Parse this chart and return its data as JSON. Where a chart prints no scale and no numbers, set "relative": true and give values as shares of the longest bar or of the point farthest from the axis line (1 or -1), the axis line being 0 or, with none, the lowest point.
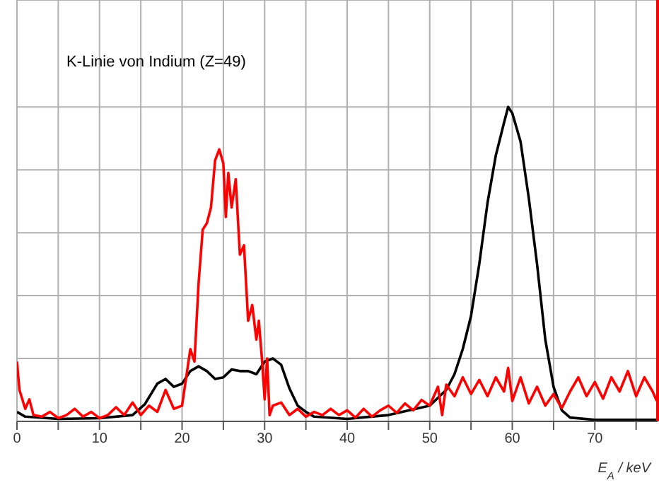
{
  "chart_data": {
    "type": "line",
    "relative": true,
    "xlabel": "E$_{A}$ / keV",
    "annotations": [
      "K-Linie von Indium (Z=49)"
    ],
    "xlim": [
      0,
      77.6
    ],
    "xticks": [
      0,
      {
        "value": 5,
        "label": null
      },
      10,
      {
        "value": 15,
        "label": null
      },
      20,
      {
        "value": 25,
        "label": null
      },
      30,
      {
        "value": 35,
        "label": null
      },
      40,
      {
        "value": 45,
        "label": null
      },
      50,
      {
        "value": 55,
        "label": null
      },
      60,
      {
        "value": 65,
        "label": null
      },
      70,
      {
        "value": 75,
        "label": null
      }
    ],
    "grid": true,
    "marker": "none",
    "line_style": "solid",
    "ref_lines": [
      {
        "axis": "x",
        "value": 77.6,
        "label": null,
        "color": "#ff0000"
      }
    ],
    "series": [
      {
        "color": "#000000",
        "x": [
          0,
          1,
          5,
          10,
          14,
          15.5,
          17,
          18,
          19,
          20,
          21,
          22,
          23,
          24,
          25,
          26,
          27,
          28,
          29,
          30,
          31,
          32,
          33,
          34,
          35,
          36,
          40,
          45,
          50,
          52,
          53,
          54,
          55,
          56,
          57,
          58,
          59,
          59.5,
          60,
          61,
          62,
          63,
          64,
          65,
          66,
          67,
          70,
          77.5
        ],
        "values": [
          0.03,
          0.015,
          0.008,
          0.01,
          0.02,
          0.055,
          0.12,
          0.135,
          0.11,
          0.12,
          0.16,
          0.175,
          0.16,
          0.135,
          0.14,
          0.165,
          0.16,
          0.16,
          0.15,
          0.19,
          0.2,
          0.18,
          0.105,
          0.05,
          0.03,
          0.015,
          0.008,
          0.02,
          0.05,
          0.1,
          0.15,
          0.23,
          0.335,
          0.5,
          0.695,
          0.845,
          0.95,
          1,
          0.98,
          0.89,
          0.71,
          0.5,
          0.26,
          0.11,
          0.035,
          0.012,
          0.005,
          0.005
        ]
      },
      {
        "color": "#ff0000",
        "x": [
          0,
          0.3,
          1,
          1.5,
          2,
          3,
          4,
          5,
          6,
          7,
          8,
          9,
          10,
          11,
          12,
          13,
          14,
          15,
          16,
          17,
          18,
          19,
          20,
          21,
          21.5,
          22,
          22.5,
          23,
          23.5,
          24,
          24.5,
          25,
          25.3,
          25.6,
          26,
          26.5,
          27,
          27.5,
          28,
          28.5,
          29,
          29.3,
          29.7,
          30,
          30.3,
          30.6,
          31,
          32,
          33,
          34,
          35,
          36,
          37,
          38,
          39,
          40,
          41,
          42,
          43,
          44,
          45,
          46,
          47,
          48,
          49,
          50,
          51,
          51.5,
          52,
          53,
          54,
          55,
          56,
          57,
          58,
          59,
          59.5,
          60,
          61,
          62,
          63,
          64,
          65,
          66,
          67,
          68,
          69,
          70,
          71,
          72,
          73,
          74,
          75,
          76,
          77,
          77.5
        ],
        "values": [
          0.19,
          0.1,
          0.04,
          0.07,
          0.02,
          0.015,
          0.03,
          0.01,
          0.02,
          0.04,
          0.015,
          0.03,
          0.01,
          0.02,
          0.045,
          0.02,
          0.06,
          0.02,
          0.05,
          0.03,
          0.1,
          0.04,
          0.05,
          0.23,
          0.19,
          0.44,
          0.61,
          0.63,
          0.68,
          0.83,
          0.865,
          0.82,
          0.65,
          0.79,
          0.68,
          0.77,
          0.53,
          0.56,
          0.32,
          0.37,
          0.26,
          0.32,
          0.19,
          0.07,
          0.2,
          0.02,
          0.05,
          0.06,
          0.02,
          0.04,
          0.015,
          0.03,
          0.02,
          0.04,
          0.02,
          0.035,
          0.012,
          0.04,
          0.015,
          0.035,
          0.05,
          0.027,
          0.057,
          0.035,
          0.068,
          0.05,
          0.11,
          0.02,
          0.117,
          0.08,
          0.14,
          0.087,
          0.132,
          0.08,
          0.14,
          0.095,
          0.17,
          0.065,
          0.14,
          0.057,
          0.11,
          0.05,
          0.087,
          0.042,
          0.095,
          0.14,
          0.08,
          0.125,
          0.072,
          0.14,
          0.095,
          0.16,
          0.08,
          0.14,
          0.095,
          0.065
        ]
      }
    ]
  }
}
